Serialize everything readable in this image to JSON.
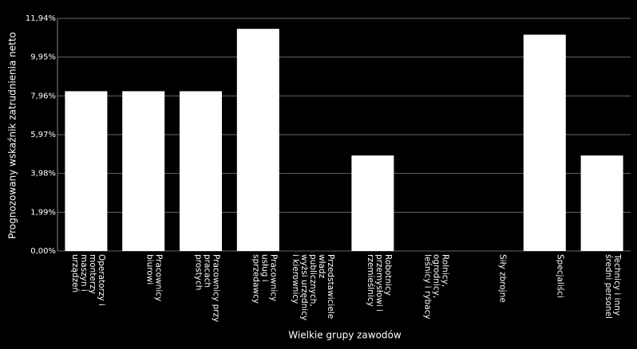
{
  "chart_data": {
    "type": "bar",
    "x_label": "Wielkie grupy zawodów",
    "y_label": "Prognozowany wskaźnik zatrudnienia netto",
    "categories": [
      "Operatorzy i monterzy maszyn i urządzeń",
      "Pracownicy biurowi",
      "Pracownicy przy pracach prostych",
      "Pracownicy usług i sprzedawcy",
      "Przedstawiciele władz publicznych, wyżsi urzędnicy i kierownicy",
      "Robotnicy przemysłowi i rzemieślnicy",
      "Rolnicy, ogrodnicy, leśnicy i rybacy",
      "Siły zbrojne",
      "Specjaliści",
      "Technicy i inny średni personel"
    ],
    "values": [
      8.2,
      8.2,
      8.2,
      11.4,
      0,
      4.9,
      0,
      0,
      11.1,
      4.9
    ],
    "color": "#ffffff",
    "ylim": [
      0,
      11.94
    ],
    "yticks": [
      {
        "value": 0,
        "label": "0,00%"
      },
      {
        "value": 1.99,
        "label": "1,99%"
      },
      {
        "value": 3.98,
        "label": "3,98%"
      },
      {
        "value": 5.97,
        "label": "5,97%"
      },
      {
        "value": 7.96,
        "label": "7,96%"
      },
      {
        "value": 9.95,
        "label": "9,95%"
      },
      {
        "value": 11.94,
        "label": "11,94%"
      }
    ],
    "grid": true
  }
}
